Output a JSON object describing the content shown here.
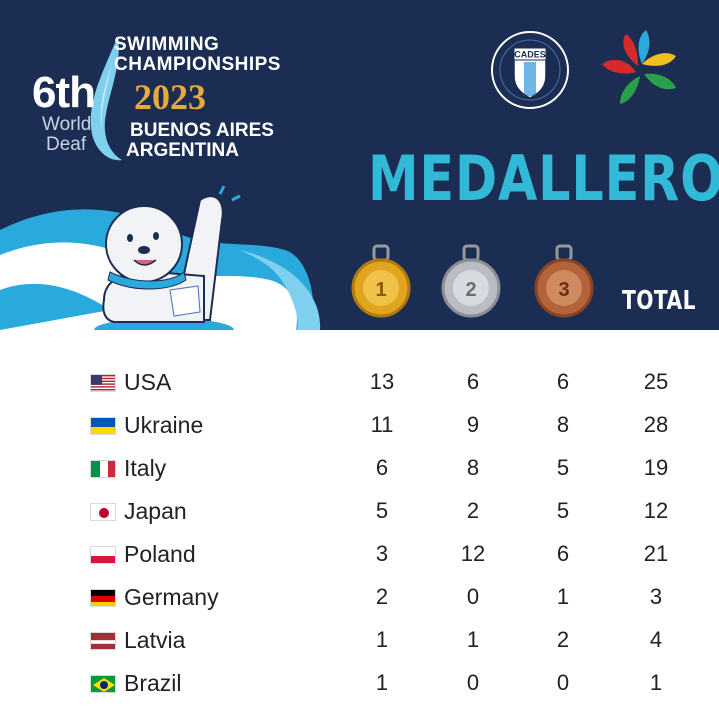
{
  "logo": {
    "edition": "6th",
    "world": "World",
    "deaf": "Deaf",
    "swimming": "SWIMMING",
    "championships": "CHAMPIONSHIPS",
    "year": "2023",
    "city": "BUENOS AIRES",
    "country": "ARGENTINA"
  },
  "cades_badge": "CADES",
  "title": "MEDALLERO",
  "medal_labels": {
    "gold": "1",
    "silver": "2",
    "bronze": "3"
  },
  "total_label": "TOTAL",
  "colors": {
    "header_bg": "#1b2d52",
    "title": "#33b9d8",
    "wave": "#2aa9dd",
    "gold": "#e0a51c",
    "silver": "#b9bcc2",
    "bronze": "#b4643c",
    "year": "#e9a93b"
  },
  "rows": [
    {
      "flag": "usa-flag",
      "country": "USA",
      "gold": "13",
      "silver": "6",
      "bronze": "6",
      "total": "25"
    },
    {
      "flag": "ukraine-flag",
      "country": "Ukraine",
      "gold": "11",
      "silver": "9",
      "bronze": "8",
      "total": "28"
    },
    {
      "flag": "italy-flag",
      "country": "Italy",
      "gold": "6",
      "silver": "8",
      "bronze": "5",
      "total": "19"
    },
    {
      "flag": "japan-flag",
      "country": "Japan",
      "gold": "5",
      "silver": "2",
      "bronze": "5",
      "total": "12"
    },
    {
      "flag": "poland-flag",
      "country": "Poland",
      "gold": "3",
      "silver": "12",
      "bronze": "6",
      "total": "21"
    },
    {
      "flag": "germany-flag",
      "country": "Germany",
      "gold": "2",
      "silver": "0",
      "bronze": "1",
      "total": "3"
    },
    {
      "flag": "latvia-flag",
      "country": "Latvia",
      "gold": "1",
      "silver": "1",
      "bronze": "2",
      "total": "4"
    },
    {
      "flag": "brazil-flag",
      "country": "Brazil",
      "gold": "1",
      "silver": "0",
      "bronze": "0",
      "total": "1"
    }
  ]
}
